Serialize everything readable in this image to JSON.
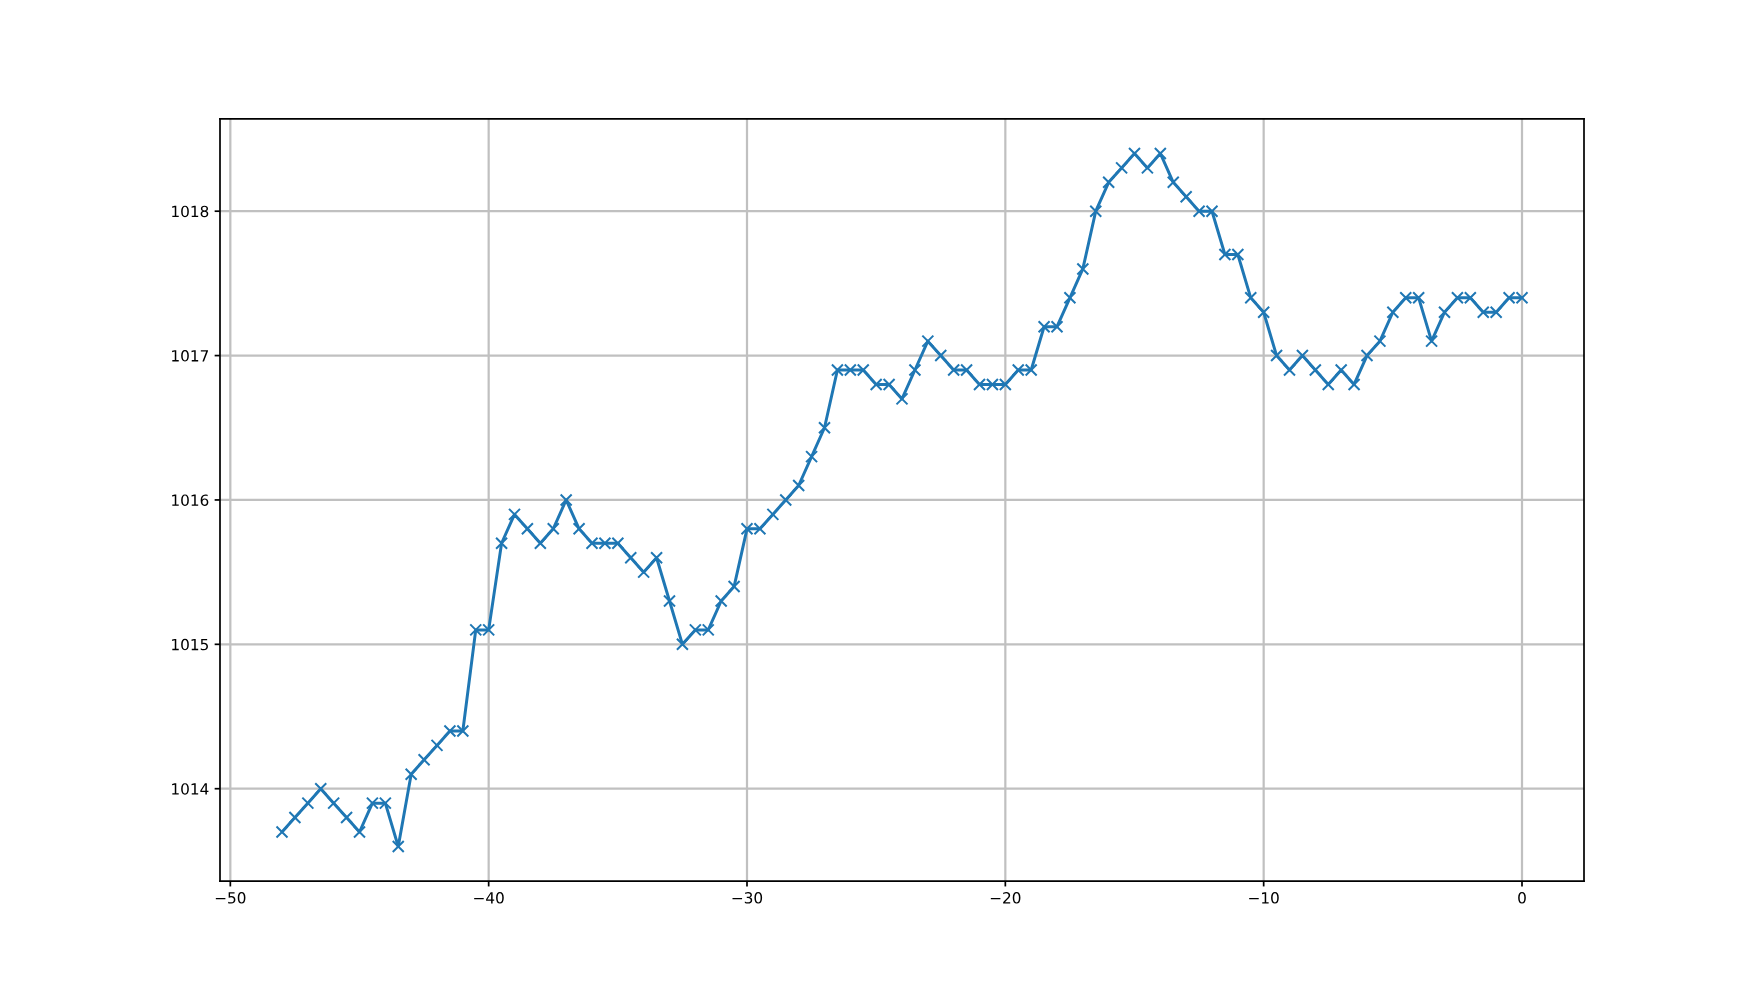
{
  "chart_data": {
    "type": "line",
    "x": [
      -48,
      -47.5,
      -47,
      -46.5,
      -46,
      -45.5,
      -45,
      -44.5,
      -44,
      -43.5,
      -43,
      -42.5,
      -42,
      -41.5,
      -41,
      -40.5,
      -40,
      -39.5,
      -39,
      -38.5,
      -38,
      -37.5,
      -37,
      -36.5,
      -36,
      -35.5,
      -35,
      -34.5,
      -34,
      -33.5,
      -33,
      -32.5,
      -32,
      -31.5,
      -31,
      -30.5,
      -30,
      -29.5,
      -29,
      -28.5,
      -28,
      -27.5,
      -27,
      -26.5,
      -26,
      -25.5,
      -25,
      -24.5,
      -24,
      -23.5,
      -23,
      -22.5,
      -22,
      -21.5,
      -21,
      -20.5,
      -20,
      -19.5,
      -19,
      -18.5,
      -18,
      -17.5,
      -17,
      -16.5,
      -16,
      -15.5,
      -15,
      -14.5,
      -14,
      -13.5,
      -13,
      -12.5,
      -12,
      -11.5,
      -11,
      -10.5,
      -10,
      -9.5,
      -9,
      -8.5,
      -8,
      -7.5,
      -7,
      -6.5,
      -6,
      -5.5,
      -5,
      -4.5,
      -4,
      -3.5,
      -3,
      -2.5,
      -2,
      -1.5,
      -1,
      -0.5,
      0
    ],
    "series": [
      {
        "color": "#1f77b4",
        "values": [
          1013.7,
          1013.8,
          1013.9,
          1014.0,
          1013.9,
          1013.8,
          1013.7,
          1013.9,
          1013.9,
          1013.6,
          1014.1,
          1014.2,
          1014.3,
          1014.4,
          1014.4,
          1015.1,
          1015.1,
          1015.7,
          1015.9,
          1015.8,
          1015.7,
          1015.8,
          1016.0,
          1015.8,
          1015.7,
          1015.7,
          1015.7,
          1015.6,
          1015.5,
          1015.6,
          1015.3,
          1015.0,
          1015.1,
          1015.1,
          1015.3,
          1015.4,
          1015.8,
          1015.8,
          1015.9,
          1016.0,
          1016.1,
          1016.3,
          1016.5,
          1016.9,
          1016.9,
          1016.9,
          1016.8,
          1016.8,
          1016.7,
          1016.9,
          1017.1,
          1017.0,
          1016.9,
          1016.9,
          1016.8,
          1016.8,
          1016.8,
          1016.9,
          1016.9,
          1017.2,
          1017.2,
          1017.4,
          1017.6,
          1018.0,
          1018.2,
          1018.3,
          1018.4,
          1018.3,
          1018.4,
          1018.2,
          1018.1,
          1018.0,
          1018.0,
          1017.7,
          1017.7,
          1017.4,
          1017.3,
          1017.0,
          1016.9,
          1017.0,
          1016.9,
          1016.8,
          1016.9,
          1016.8,
          1017.0,
          1017.1,
          1017.3,
          1017.4,
          1017.4,
          1017.1,
          1017.3,
          1017.4,
          1017.4,
          1017.3,
          1017.3,
          1017.4,
          1017.4
        ]
      }
    ],
    "xlim": [
      -50.4,
      2.4
    ],
    "ylim": [
      1013.36,
      1018.64
    ],
    "xticks": [
      {
        "value": -50,
        "label": "−50"
      },
      {
        "value": -40,
        "label": "−40"
      },
      {
        "value": -30,
        "label": "−30"
      },
      {
        "value": -20,
        "label": "−20"
      },
      {
        "value": -10,
        "label": "−10"
      },
      0
    ],
    "yticks": [
      1014,
      1015,
      1016,
      1017,
      1018
    ],
    "grid": true,
    "marker": "cross",
    "line_style": "solid"
  }
}
